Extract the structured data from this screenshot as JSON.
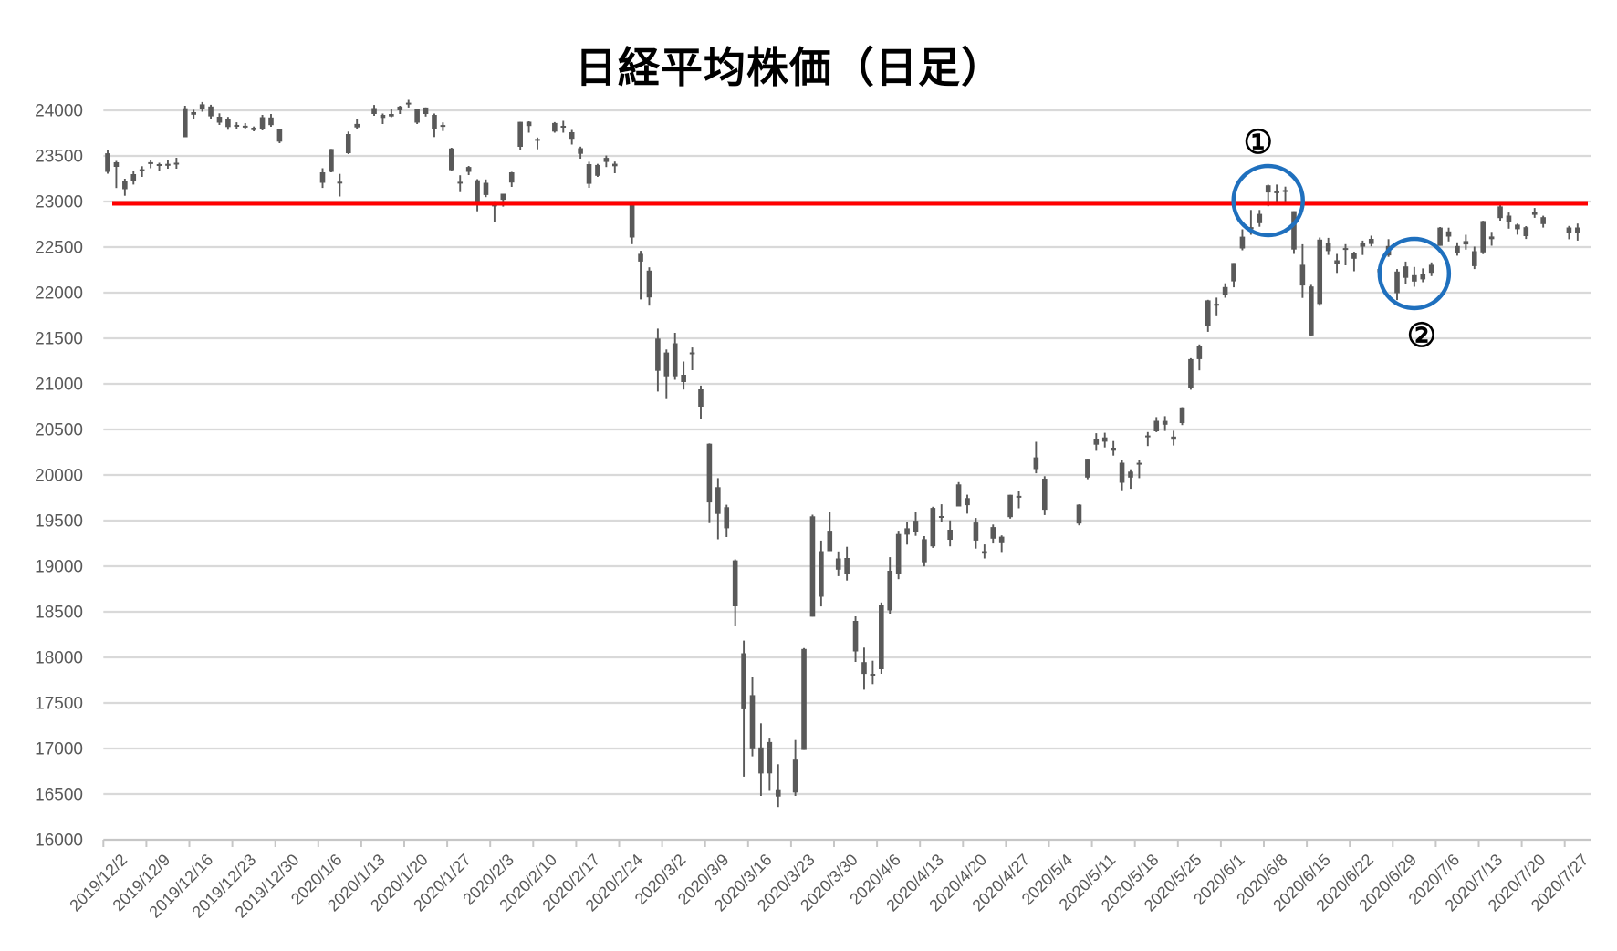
{
  "chart_data": {
    "type": "candlestick",
    "title": "日経平均株価（日足）",
    "xlabel": "",
    "ylabel": "",
    "grid": true,
    "legend": false,
    "candle_color": "#595959",
    "label_color": "#595959",
    "gridline_color": "#d9d9d9",
    "axis_line_color": "#c6c6c6",
    "y_axis": {
      "min": 16000,
      "max": 24000,
      "step": 500,
      "tick_labels": [
        "16000",
        "16500",
        "17000",
        "17500",
        "18000",
        "18500",
        "19000",
        "19500",
        "20000",
        "20500",
        "21000",
        "21500",
        "22000",
        "22500",
        "23000",
        "23500",
        "24000"
      ]
    },
    "x_axis": {
      "first_date": "2019/12/2",
      "tick_labels": [
        "2019/12/2",
        "2019/12/9",
        "2019/12/16",
        "2019/12/23",
        "2019/12/30",
        "2020/1/6",
        "2020/1/13",
        "2020/1/20",
        "2020/1/27",
        "2020/2/3",
        "2020/2/10",
        "2020/2/17",
        "2020/2/24",
        "2020/3/2",
        "2020/3/9",
        "2020/3/16",
        "2020/3/23",
        "2020/3/30",
        "2020/4/6",
        "2020/4/13",
        "2020/4/20",
        "2020/4/27",
        "2020/5/4",
        "2020/5/11",
        "2020/5/18",
        "2020/5/25",
        "2020/6/1",
        "2020/6/8",
        "2020/6/15",
        "2020/6/22",
        "2020/6/29",
        "2020/7/6",
        "2020/7/13",
        "2020/7/20",
        "2020/7/27"
      ]
    },
    "resistance_line": {
      "value": 22980,
      "color": "#ff0000"
    },
    "annotations": [
      {
        "label": "①",
        "date": "2020/6/8",
        "value": 23010,
        "radius_px": 38,
        "label_side": "above",
        "circle_color": "#1f70be",
        "label_color": "#000000"
      },
      {
        "label": "②",
        "date": "2020/7/1",
        "value": 22210,
        "radius_px": 38,
        "label_side": "below",
        "circle_color": "#1f70be",
        "label_color": "#000000"
      }
    ],
    "candles": [
      [
        "2019/12/2",
        23325,
        23564,
        23305,
        23529
      ],
      [
        "2019/12/3",
        23430,
        23445,
        23148,
        23380
      ],
      [
        "2019/12/4",
        23226,
        23250,
        23063,
        23135
      ],
      [
        "2019/12/5",
        23225,
        23330,
        23186,
        23300
      ],
      [
        "2019/12/6",
        23331,
        23387,
        23270,
        23354
      ],
      [
        "2019/12/9",
        23430,
        23460,
        23365,
        23431
      ],
      [
        "2019/12/10",
        23400,
        23425,
        23333,
        23410
      ],
      [
        "2019/12/11",
        23413,
        23450,
        23360,
        23392
      ],
      [
        "2019/12/12",
        23425,
        23480,
        23360,
        23425
      ],
      [
        "2019/12/13",
        23705,
        24050,
        23705,
        24023
      ],
      [
        "2019/12/16",
        23980,
        24006,
        23910,
        23952
      ],
      [
        "2019/12/17",
        24020,
        24091,
        23985,
        24066
      ],
      [
        "2019/12/18",
        24042,
        24061,
        23910,
        23934
      ],
      [
        "2019/12/19",
        23930,
        23967,
        23840,
        23865
      ],
      [
        "2019/12/20",
        23905,
        23928,
        23787,
        23817
      ],
      [
        "2019/12/23",
        23840,
        23869,
        23798,
        23821
      ],
      [
        "2019/12/24",
        23830,
        23860,
        23801,
        23831
      ],
      [
        "2019/12/25",
        23810,
        23823,
        23770,
        23783
      ],
      [
        "2019/12/26",
        23795,
        23950,
        23780,
        23925
      ],
      [
        "2019/12/27",
        23922,
        23960,
        23820,
        23838
      ],
      [
        "2019/12/30",
        23790,
        23800,
        23640,
        23657
      ],
      [
        "2020/1/6",
        23320,
        23365,
        23149,
        23205
      ],
      [
        "2020/1/7",
        23325,
        23577,
        23320,
        23576
      ],
      [
        "2020/1/8",
        23217,
        23303,
        23055,
        23205
      ],
      [
        "2020/1/9",
        23530,
        23767,
        23520,
        23740
      ],
      [
        "2020/1/10",
        23813,
        23904,
        23800,
        23851
      ],
      [
        "2020/1/14",
        23960,
        24059,
        23940,
        24025
      ],
      [
        "2020/1/15",
        23950,
        23965,
        23850,
        23917
      ],
      [
        "2020/1/16",
        23960,
        24013,
        23925,
        23933
      ],
      [
        "2020/1/17",
        24000,
        24050,
        23960,
        24041
      ],
      [
        "2020/1/20",
        24082,
        24115,
        24031,
        24084
      ],
      [
        "2020/1/21",
        24010,
        24012,
        23850,
        23865
      ],
      [
        "2020/1/22",
        23960,
        24032,
        23932,
        24031
      ],
      [
        "2020/1/23",
        23950,
        23965,
        23707,
        23795
      ],
      [
        "2020/1/24",
        23839,
        23868,
        23773,
        23827
      ],
      [
        "2020/1/27",
        23582,
        23590,
        23335,
        23344
      ],
      [
        "2020/1/28",
        23216,
        23288,
        23103,
        23216
      ],
      [
        "2020/1/29",
        23325,
        23390,
        23290,
        23379
      ],
      [
        "2020/1/30",
        23233,
        23245,
        22893,
        22978
      ],
      [
        "2020/1/31",
        23071,
        23242,
        23048,
        23205
      ],
      [
        "2020/2/3",
        22946,
        23006,
        22776,
        22972
      ],
      [
        "2020/2/4",
        23019,
        23085,
        22944,
        23085
      ],
      [
        "2020/2/5",
        23208,
        23325,
        23160,
        23320
      ],
      [
        "2020/2/6",
        23600,
        23875,
        23570,
        23874
      ],
      [
        "2020/2/7",
        23875,
        23880,
        23755,
        23828
      ],
      [
        "2020/2/10",
        23685,
        23702,
        23573,
        23686
      ],
      [
        "2020/2/12",
        23767,
        23871,
        23755,
        23861
      ],
      [
        "2020/2/13",
        23830,
        23885,
        23755,
        23828
      ],
      [
        "2020/2/14",
        23760,
        23785,
        23625,
        23688
      ],
      [
        "2020/2/17",
        23585,
        23602,
        23470,
        23523
      ],
      [
        "2020/2/18",
        23410,
        23436,
        23150,
        23194
      ],
      [
        "2020/2/19",
        23282,
        23413,
        23270,
        23401
      ],
      [
        "2020/2/20",
        23434,
        23504,
        23378,
        23479
      ],
      [
        "2020/2/21",
        23414,
        23438,
        23310,
        23387
      ],
      [
        "2020/2/25",
        22980,
        22981,
        22532,
        22605
      ],
      [
        "2020/2/26",
        22341,
        22459,
        21926,
        22426
      ],
      [
        "2020/2/27",
        22242,
        22278,
        21858,
        21948
      ],
      [
        "2020/2/28",
        21497,
        21606,
        20916,
        21143
      ],
      [
        "2020/3/2",
        21083,
        21377,
        20833,
        21344
      ],
      [
        "2020/3/3",
        21445,
        21560,
        21045,
        21083
      ],
      [
        "2020/3/4",
        21020,
        21245,
        20938,
        21100
      ],
      [
        "2020/3/5",
        21345,
        21399,
        21150,
        21329
      ],
      [
        "2020/3/6",
        20940,
        20981,
        20613,
        20750
      ],
      [
        "2020/3/9",
        20343,
        20347,
        19473,
        19699
      ],
      [
        "2020/3/10",
        19573,
        19966,
        19295,
        19867
      ],
      [
        "2020/3/11",
        19647,
        19674,
        19320,
        19416
      ],
      [
        "2020/3/12",
        19064,
        19075,
        18340,
        18560
      ],
      [
        "2020/3/13",
        18045,
        18184,
        16691,
        17431
      ],
      [
        "2020/3/16",
        17586,
        17785,
        16914,
        17002
      ],
      [
        "2020/3/17",
        16726,
        17277,
        16480,
        17012
      ],
      [
        "2020/3/18",
        17071,
        17119,
        16545,
        16727
      ],
      [
        "2020/3/19",
        16473,
        16827,
        16358,
        16553
      ],
      [
        "2020/3/23",
        16517,
        17093,
        16480,
        16888
      ],
      [
        "2020/3/24",
        16984,
        18102,
        16984,
        18092
      ],
      [
        "2020/3/25",
        18446,
        19565,
        18446,
        19547
      ],
      [
        "2020/3/26",
        19165,
        19281,
        18559,
        18665
      ],
      [
        "2020/3/27",
        19165,
        19590,
        19165,
        19389
      ],
      [
        "2020/3/30",
        18962,
        19162,
        18891,
        19085
      ],
      [
        "2020/3/31",
        19090,
        19213,
        18843,
        18917
      ],
      [
        "2020/4/1",
        18400,
        18450,
        17950,
        18065
      ],
      [
        "2020/4/2",
        17948,
        18107,
        17646,
        17819
      ],
      [
        "2020/4/3",
        17800,
        17963,
        17707,
        17820
      ],
      [
        "2020/4/6",
        17870,
        18602,
        17820,
        18576
      ],
      [
        "2020/4/7",
        18515,
        19099,
        18480,
        18950
      ],
      [
        "2020/4/8",
        18920,
        19389,
        18858,
        19353
      ],
      [
        "2020/4/9",
        19416,
        19480,
        19237,
        19346
      ],
      [
        "2020/4/10",
        19370,
        19595,
        19333,
        19499
      ],
      [
        "2020/4/13",
        19296,
        19330,
        18998,
        19043
      ],
      [
        "2020/4/14",
        19218,
        19652,
        19201,
        19639
      ],
      [
        "2020/4/15",
        19549,
        19679,
        19486,
        19550
      ],
      [
        "2020/4/16",
        19400,
        19502,
        19218,
        19290
      ],
      [
        "2020/4/17",
        19655,
        19922,
        19655,
        19897
      ],
      [
        "2020/4/20",
        19747,
        19784,
        19576,
        19669
      ],
      [
        "2020/4/21",
        19479,
        19529,
        19193,
        19281
      ],
      [
        "2020/4/22",
        19165,
        19239,
        19085,
        19138
      ],
      [
        "2020/4/23",
        19302,
        19457,
        19249,
        19429
      ],
      [
        "2020/4/24",
        19324,
        19338,
        19156,
        19262
      ],
      [
        "2020/4/27",
        19538,
        19783,
        19522,
        19783
      ],
      [
        "2020/4/28",
        19766,
        19824,
        19635,
        19771
      ],
      [
        "2020/4/30",
        20065,
        20365,
        20019,
        20194
      ],
      [
        "2020/5/1",
        19960,
        19987,
        19561,
        19619
      ],
      [
        "2020/5/7",
        19468,
        19679,
        19448,
        19675
      ],
      [
        "2020/5/8",
        19972,
        20179,
        19954,
        20179
      ],
      [
        "2020/5/11",
        20333,
        20459,
        20266,
        20391
      ],
      [
        "2020/5/12",
        20413,
        20464,
        20303,
        20366
      ],
      [
        "2020/5/13",
        20300,
        20373,
        20213,
        20267
      ],
      [
        "2020/5/14",
        20135,
        20161,
        19833,
        19915
      ],
      [
        "2020/5/15",
        19972,
        20063,
        19849,
        20037
      ],
      [
        "2020/5/18",
        20123,
        20163,
        19966,
        20134
      ],
      [
        "2020/5/19",
        20434,
        20472,
        20318,
        20433
      ],
      [
        "2020/5/20",
        20480,
        20636,
        20471,
        20595
      ],
      [
        "2020/5/21",
        20594,
        20646,
        20484,
        20552
      ],
      [
        "2020/5/22",
        20422,
        20486,
        20324,
        20388
      ],
      [
        "2020/5/25",
        20570,
        20745,
        20548,
        20742
      ],
      [
        "2020/5/26",
        20950,
        21281,
        20936,
        21271
      ],
      [
        "2020/5/27",
        21271,
        21432,
        21148,
        21419
      ],
      [
        "2020/5/28",
        21635,
        21922,
        21571,
        21916
      ],
      [
        "2020/5/29",
        21868,
        21946,
        21742,
        21878
      ],
      [
        "2020/6/1",
        21978,
        22103,
        21945,
        22062
      ],
      [
        "2020/6/2",
        22124,
        22326,
        22059,
        22326
      ],
      [
        "2020/6/3",
        22485,
        22695,
        22465,
        22614
      ],
      [
        "2020/6/4",
        22719,
        22907,
        22635,
        22696
      ],
      [
        "2020/6/5",
        22762,
        22907,
        22723,
        22864
      ],
      [
        "2020/6/8",
        23099,
        23185,
        22948,
        23178
      ],
      [
        "2020/6/9",
        23112,
        23186,
        22970,
        23091
      ],
      [
        "2020/6/10",
        23107,
        23163,
        22990,
        23125
      ],
      [
        "2020/6/11",
        22894,
        22894,
        22425,
        22473
      ],
      [
        "2020/6/12",
        22079,
        22531,
        21943,
        22306
      ],
      [
        "2020/6/15",
        22068,
        22086,
        21520,
        21531
      ],
      [
        "2020/6/16",
        21876,
        22605,
        21857,
        22582
      ],
      [
        "2020/6/17",
        22545,
        22601,
        22414,
        22456
      ],
      [
        "2020/6/18",
        22314,
        22425,
        22217,
        22355
      ],
      [
        "2020/6/19",
        22489,
        22532,
        22300,
        22479
      ],
      [
        "2020/6/22",
        22372,
        22449,
        22235,
        22437
      ],
      [
        "2020/6/23",
        22504,
        22571,
        22413,
        22549
      ],
      [
        "2020/6/24",
        22590,
        22625,
        22508,
        22534
      ],
      [
        "2020/6/25",
        22223,
        22282,
        22119,
        22260
      ],
      [
        "2020/6/26",
        22409,
        22587,
        22393,
        22512
      ],
      [
        "2020/6/29",
        22232,
        22259,
        21919,
        21995
      ],
      [
        "2020/6/30",
        22163,
        22341,
        22099,
        22288
      ],
      [
        "2020/7/1",
        22192,
        22282,
        22065,
        22122
      ],
      [
        "2020/7/2",
        22209,
        22266,
        22115,
        22146
      ],
      [
        "2020/7/3",
        22218,
        22332,
        22182,
        22306
      ],
      [
        "2020/7/6",
        22514,
        22720,
        22514,
        22714
      ],
      [
        "2020/7/7",
        22672,
        22713,
        22562,
        22615
      ],
      [
        "2020/7/8",
        22512,
        22552,
        22406,
        22439
      ],
      [
        "2020/7/9",
        22566,
        22635,
        22472,
        22529
      ],
      [
        "2020/7/10",
        22455,
        22505,
        22259,
        22291
      ],
      [
        "2020/7/13",
        22442,
        22789,
        22423,
        22785
      ],
      [
        "2020/7/14",
        22616,
        22667,
        22515,
        22587
      ],
      [
        "2020/7/15",
        22818,
        22965,
        22790,
        22946
      ],
      [
        "2020/7/16",
        22845,
        22879,
        22702,
        22770
      ],
      [
        "2020/7/17",
        22746,
        22757,
        22636,
        22696
      ],
      [
        "2020/7/20",
        22620,
        22730,
        22589,
        22718
      ],
      [
        "2020/7/21",
        22854,
        22929,
        22821,
        22884
      ],
      [
        "2020/7/22",
        22828,
        22844,
        22714,
        22752
      ],
      [
        "2020/7/27",
        22656,
        22732,
        22586,
        22715
      ],
      [
        "2020/7/28",
        22715,
        22758,
        22571,
        22657
      ]
    ]
  }
}
